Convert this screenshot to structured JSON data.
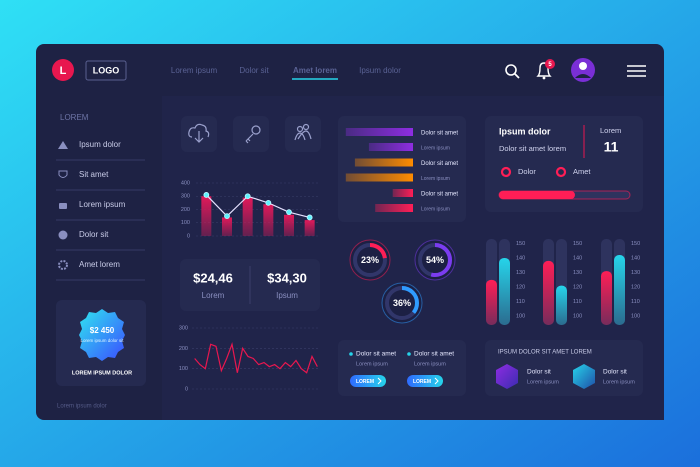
{
  "header": {
    "logo_letter": "L",
    "logo": "LOGO",
    "nav": [
      {
        "label": "Lorem ipsum",
        "active": false
      },
      {
        "label": "Dolor sit",
        "active": false
      },
      {
        "label": "Amet lorem",
        "active": true
      },
      {
        "label": "Ipsum dolor",
        "active": false
      }
    ],
    "notifications": 5
  },
  "sidebar": {
    "heading": "LOREM",
    "items": [
      "Ipsum dolor",
      "Sit amet",
      "Lorem ipsum",
      "Dolor sit",
      "Amet lorem"
    ],
    "badge": {
      "amount": "$2 450",
      "text": "Lorem ipsum dolor sit",
      "caption": "LOREM IPSUM DOLOR"
    },
    "footer": "Lorem ipsum dolor"
  },
  "stats": [
    {
      "value": "$24,46",
      "label": "Lorem"
    },
    {
      "value": "$34,30",
      "label": "Ipsum"
    }
  ],
  "info_card": {
    "title": "Ipsum dolor",
    "subtitle": "Dolor sit amet lorem",
    "stat_label": "Lorem",
    "stat_value": 11,
    "options": [
      "Dolor",
      "Amet"
    ]
  },
  "actions": [
    {
      "title": "Dolor sit amet",
      "text": "Lorem ipsum",
      "button": "LOREM"
    },
    {
      "title": "Dolor sit amet",
      "text": "Lorem ipsum",
      "button": "LOREM"
    }
  ],
  "hex_card": {
    "title": "IPSUM DOLOR  SIT AMET LOREM",
    "items": [
      {
        "title": "Dolor sit",
        "text": "Lorem ipsum"
      },
      {
        "title": "Dolor sit",
        "text": "Lorem ipsum"
      }
    ]
  },
  "chart_data": [
    {
      "type": "bar",
      "categories": [
        null,
        null,
        null,
        null,
        null,
        null
      ],
      "series": [
        {
          "type": "bar",
          "color": "#e0195a",
          "values": [
            300,
            140,
            290,
            240,
            160,
            120
          ]
        },
        {
          "type": "line",
          "color": "#e6e2ff",
          "marker_color": "#5ef2ff",
          "values": [
            310,
            150,
            300,
            250,
            180,
            140
          ]
        }
      ],
      "ylim": [
        0,
        400
      ],
      "yticks": [
        0,
        100,
        200,
        300,
        400
      ],
      "grid": true
    },
    {
      "type": "line",
      "categories": [
        null,
        null,
        null,
        null,
        null,
        null,
        null,
        null,
        null,
        null,
        null,
        null,
        null,
        null,
        null,
        null,
        null,
        null,
        null,
        null,
        null,
        null,
        null,
        null
      ],
      "values": [
        150,
        120,
        100,
        220,
        210,
        90,
        150,
        220,
        80,
        200,
        160,
        150,
        120,
        130,
        110,
        120,
        100,
        130,
        110,
        140,
        100,
        80,
        160,
        110
      ],
      "color": "#e8174f",
      "ylim": [
        0,
        300
      ],
      "yticks": [
        0,
        100,
        200,
        300
      ],
      "grid": true
    },
    {
      "type": "hbar",
      "categories": [
        "Dolor sit amet",
        "Dolor sit amet",
        "Dolor sit amet"
      ],
      "sublabels": [
        "Lorem ipsum",
        "Lorem ipsum",
        "Lorem ipsum"
      ],
      "colors": [
        "#8e2de2",
        "#ff8c00",
        "#ff1e56"
      ],
      "series": [
        {
          "values": [
            96,
            83,
            29
          ]
        },
        {
          "values": [
            63,
            96,
            54
          ]
        }
      ],
      "xlim": [
        0,
        100
      ]
    },
    {
      "type": "donut",
      "values": [
        23,
        54,
        36
      ],
      "value_labels": [
        "23%",
        "54%",
        "36%"
      ],
      "colors": [
        "#ff1e56",
        "#7b3cf0",
        "#2f9bff"
      ],
      "xlim": [
        0,
        100
      ]
    },
    {
      "type": "progress",
      "values": [
        58
      ],
      "color": "#ff1e56",
      "xlim": [
        0,
        100
      ]
    },
    {
      "type": "bar",
      "categories": [
        null
      ],
      "series": [
        {
          "type": "bar",
          "color": "#ff1e56",
          "values": [
            125
          ]
        },
        {
          "type": "bar",
          "color": "#26d4ea",
          "values": [
            140
          ]
        }
      ],
      "ylim": [
        94,
        153
      ],
      "yticks": [
        100,
        110,
        120,
        130,
        140,
        150
      ],
      "grid": false
    },
    {
      "type": "bar",
      "categories": [
        null
      ],
      "series": [
        {
          "type": "bar",
          "color": "#ff1e56",
          "values": [
            138
          ]
        },
        {
          "type": "bar",
          "color": "#26d4ea",
          "values": [
            121
          ]
        }
      ],
      "ylim": [
        94,
        153
      ],
      "yticks": [
        100,
        110,
        120,
        130,
        140,
        150
      ],
      "grid": false
    },
    {
      "type": "bar",
      "categories": [
        null
      ],
      "series": [
        {
          "type": "bar",
          "color": "#ff1e56",
          "values": [
            131
          ]
        },
        {
          "type": "bar",
          "color": "#26d4ea",
          "values": [
            142
          ]
        }
      ],
      "ylim": [
        94,
        153
      ],
      "yticks": [
        100,
        110,
        120,
        130,
        140,
        150
      ],
      "grid": false
    }
  ]
}
